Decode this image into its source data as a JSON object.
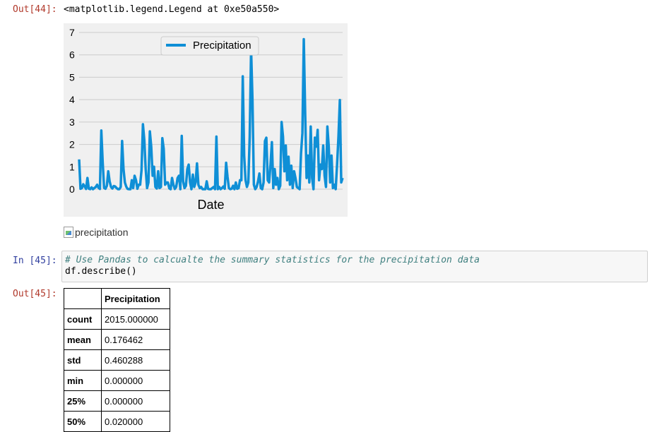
{
  "out44": {
    "prompt": "Out[44]:",
    "text": "<matplotlib.legend.Legend at 0xe50a550>"
  },
  "chart_data": {
    "type": "line",
    "xlabel": "Date",
    "ylabel": "",
    "ylim": [
      0,
      7
    ],
    "yticks": [
      "0",
      "1",
      "2",
      "3",
      "4",
      "5",
      "6",
      "7"
    ],
    "grid": true,
    "legend_position": "top-center",
    "series": [
      {
        "name": "Precipitation",
        "color": "#0f8fd6",
        "values": [
          1.33,
          0.02,
          0.05,
          0.22,
          0.12,
          0.01,
          0.5,
          0.02,
          0.0,
          0.08,
          0.0,
          0.05,
          0.1,
          0.2,
          0.06,
          0.01,
          2.62,
          1.2,
          0.06,
          0.02,
          0.15,
          0.8,
          0.35,
          0.1,
          0.03,
          0.14,
          0.12,
          0.05,
          0.0,
          0.0,
          0.1,
          2.15,
          0.9,
          0.3,
          0.11,
          0.01,
          0.0,
          0.0,
          0.4,
          0.05,
          0.6,
          0.4,
          0.02,
          0.2,
          0.2,
          0.85,
          2.9,
          2.2,
          0.9,
          0.05,
          0.3,
          2.58,
          1.9,
          0.6,
          1.0,
          0.1,
          0.03,
          0.8,
          0.05,
          0.1,
          2.28,
          1.8,
          0.2,
          0.3,
          0.3,
          0.04,
          0.0,
          0.5,
          0.2,
          0.01,
          0.1,
          0.5,
          0.6,
          0.0,
          2.38,
          0.35,
          0.05,
          0.15,
          0.9,
          1.1,
          0.3,
          0.0,
          0.65,
          0.1,
          0.3,
          1.15,
          0.2,
          0.05,
          0.1,
          0.0,
          0.0,
          0.0,
          0.35,
          0.01,
          0.0,
          0.0,
          0.05,
          0.1,
          0.0,
          2.35,
          0.0,
          0.1,
          0.0,
          0.05,
          0.12,
          0.02,
          1.18,
          0.55,
          0.05,
          0.0,
          0.02,
          0.15,
          0.0,
          0.3,
          0.02,
          0.05,
          0.4,
          0.4,
          5.04,
          1.5,
          0.4,
          0.1,
          0.3,
          2.35,
          6.25,
          4.0,
          0.2,
          0.0,
          0.1,
          0.35,
          0.7,
          0.05,
          0.0,
          0.3,
          2.15,
          2.3,
          0.4,
          0.3,
          1.1,
          2.1,
          0.05,
          0.9,
          0.2,
          0.5,
          0.0,
          0.15,
          3.0,
          2.35,
          0.8,
          1.95,
          0.4,
          1.45,
          0.2,
          1.05,
          0.05,
          0.8,
          0.5,
          0.1,
          0.05,
          0.0,
          1.6,
          2.5,
          6.7,
          3.4,
          0.5,
          1.5,
          0.3,
          2.8,
          0.5,
          0.0,
          2.3,
          1.9,
          2.65,
          0.4,
          1.1,
          0.9,
          1.95,
          0.6,
          0.1,
          2.8,
          1.9,
          0.3,
          1.5,
          0.05,
          0.2,
          0.0,
          1.1,
          2.35,
          3.98,
          0.3,
          0.5
        ]
      }
    ]
  },
  "broken_image": {
    "alt": "precipitation",
    "icon": "broken-image-icon"
  },
  "in45": {
    "prompt": "In [45]:",
    "code_line1": "# Use Pandas to calcualte the summary statistics for the precipitation data",
    "code_line2": "df.describe()"
  },
  "out45": {
    "prompt": "Out[45]:",
    "table": {
      "columns": [
        "",
        "Precipitation"
      ],
      "rows": [
        {
          "label": "count",
          "value": "2015.000000"
        },
        {
          "label": "mean",
          "value": "0.176462"
        },
        {
          "label": "std",
          "value": "0.460288"
        },
        {
          "label": "min",
          "value": "0.000000"
        },
        {
          "label": "25%",
          "value": "0.000000"
        },
        {
          "label": "50%",
          "value": "0.020000"
        }
      ]
    }
  }
}
